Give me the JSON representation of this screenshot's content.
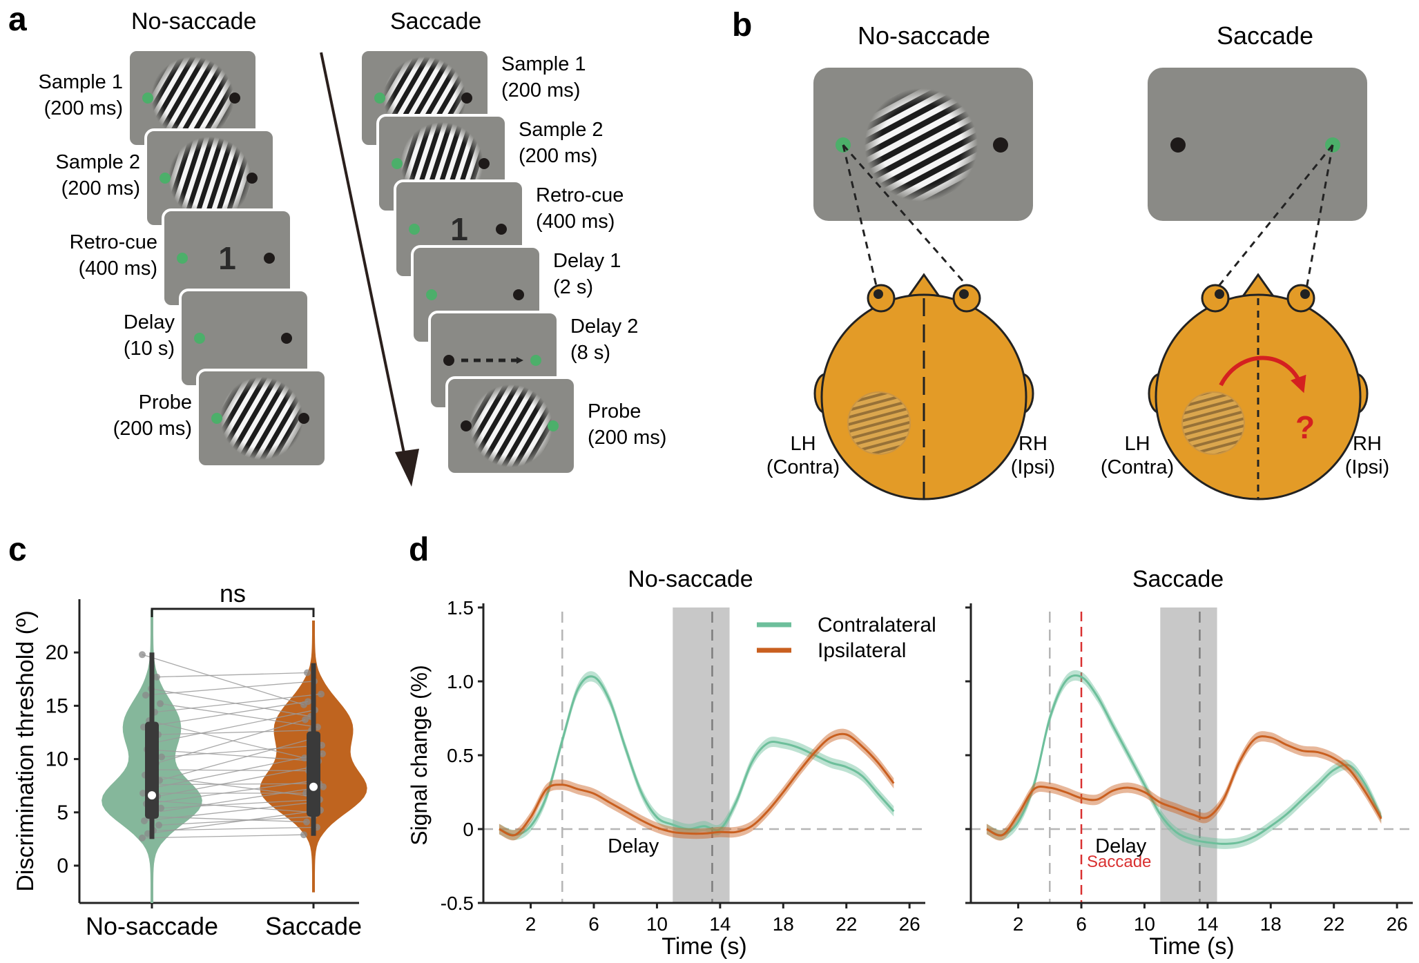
{
  "panels": {
    "a": {
      "letter": "a",
      "no_saccade": {
        "title": "No-saccade",
        "events": [
          {
            "name": "Sample 1",
            "dur": "(200 ms)",
            "content": "grating-diag"
          },
          {
            "name": "Sample 2",
            "dur": "(200 ms)",
            "content": "grating-steep"
          },
          {
            "name": "Retro-cue",
            "dur": "(400 ms)",
            "content": "cue",
            "cue": "1"
          },
          {
            "name": "Delay",
            "dur": "(10 s)",
            "content": "empty"
          },
          {
            "name": "Probe",
            "dur": "(200 ms)",
            "content": "grating-diag"
          }
        ]
      },
      "saccade": {
        "title": "Saccade",
        "events": [
          {
            "name": "Sample 1",
            "dur": "(200 ms)",
            "content": "grating-diag"
          },
          {
            "name": "Sample 2",
            "dur": "(200 ms)",
            "content": "grating-steep"
          },
          {
            "name": "Retro-cue",
            "dur": "(400 ms)",
            "content": "cue",
            "cue": "1"
          },
          {
            "name": "Delay 1",
            "dur": "(2 s)",
            "content": "empty"
          },
          {
            "name": "Delay 2",
            "dur": "(8 s)",
            "content": "saccade-arrow"
          },
          {
            "name": "Probe",
            "dur": "(200 ms)",
            "content": "grating-diag"
          }
        ]
      }
    },
    "b": {
      "letter": "b",
      "no_saccade": {
        "title": "No-saccade",
        "left_label": "LH",
        "left_sub": "(Contra)",
        "right_label": "RH",
        "right_sub": "(Ipsi)"
      },
      "saccade": {
        "title": "Saccade",
        "left_label": "LH",
        "left_sub": "(Contra)",
        "right_label": "RH",
        "right_sub": "(Ipsi)",
        "question": "?"
      }
    },
    "c": {
      "letter": "c"
    },
    "d": {
      "letter": "d"
    }
  },
  "colors": {
    "screen": "#8a8a86",
    "fixation_green": "#4caf6a",
    "head": "#e39b27",
    "contralateral": "#6dbf9b",
    "ipsilateral": "#c95f1f",
    "saccade_red": "#d93030",
    "violin_green": "#85b79b",
    "violin_orange": "#bf641f",
    "shade": "#c8c8c8"
  },
  "chart_data": [
    {
      "type": "violin",
      "panel": "c",
      "categories": [
        "No-saccade",
        "Saccade"
      ],
      "ylabel": "Discrimination threshold (º)",
      "yticks": [
        0,
        5,
        10,
        15,
        20
      ],
      "ylim": [
        -3.5,
        25
      ],
      "significance": "ns",
      "medians": [
        6.6,
        7.4
      ],
      "q1": [
        4.4,
        4.6
      ],
      "q3": [
        13.5,
        12.6
      ],
      "whisker_low": [
        2.5,
        2.8
      ],
      "whisker_high": [
        20,
        19
      ],
      "paired_values": [
        [
          2.6,
          2.9
        ],
        [
          3.0,
          5.2
        ],
        [
          3.3,
          3.6
        ],
        [
          3.8,
          4.6
        ],
        [
          4.2,
          5.9
        ],
        [
          4.6,
          4.1
        ],
        [
          5.0,
          7.4
        ],
        [
          5.4,
          6.2
        ],
        [
          5.8,
          8.0
        ],
        [
          6.1,
          5.0
        ],
        [
          6.5,
          9.2
        ],
        [
          6.8,
          6.8
        ],
        [
          7.2,
          10.5
        ],
        [
          7.6,
          7.7
        ],
        [
          8.0,
          12.0
        ],
        [
          8.5,
          6.5
        ],
        [
          9.0,
          8.9
        ],
        [
          9.6,
          13.7
        ],
        [
          10.2,
          11.3
        ],
        [
          10.9,
          9.8
        ],
        [
          11.5,
          14.6
        ],
        [
          12.3,
          12.7
        ],
        [
          13.0,
          15.4
        ],
        [
          13.6,
          10.1
        ],
        [
          14.4,
          16.1
        ],
        [
          15.2,
          13.0
        ],
        [
          16.0,
          17.3
        ],
        [
          16.6,
          14.0
        ],
        [
          17.7,
          18.1
        ],
        [
          19.8,
          15.1
        ]
      ]
    },
    {
      "type": "line",
      "panel": "d",
      "title": "No-saccade",
      "xlabel": "Time (s)",
      "ylabel": "Signal change (%)",
      "xticks": [
        2,
        6,
        10,
        14,
        18,
        22,
        26
      ],
      "yticks": [
        "-0.5",
        "0",
        "0.5",
        "1.0",
        "1.5"
      ],
      "ytick_values": [
        -0.5,
        0,
        0.5,
        1.0,
        1.5
      ],
      "xlim": [
        -1,
        27
      ],
      "ylim": [
        -0.5,
        1.5
      ],
      "shaded_window": [
        11,
        14.6
      ],
      "event_lines": [
        4,
        13.5
      ],
      "annotation": "Delay",
      "legend": [
        "Contralateral",
        "Ipsilateral"
      ],
      "series": [
        {
          "name": "Contralateral",
          "x": [
            0,
            1,
            2,
            3,
            4,
            5,
            6,
            7,
            8,
            9,
            10,
            11,
            12,
            13,
            14,
            15,
            16,
            17,
            18,
            19,
            20,
            21,
            22,
            23,
            24,
            25
          ],
          "values": [
            0.0,
            -0.04,
            0.02,
            0.22,
            0.6,
            0.95,
            1.03,
            0.87,
            0.55,
            0.25,
            0.08,
            0.03,
            0.0,
            0.02,
            0.0,
            0.18,
            0.45,
            0.58,
            0.58,
            0.55,
            0.5,
            0.45,
            0.42,
            0.36,
            0.24,
            0.12
          ]
        },
        {
          "name": "Ipsilateral",
          "x": [
            0,
            1,
            2,
            3,
            4,
            5,
            6,
            7,
            8,
            9,
            10,
            11,
            12,
            13,
            14,
            15,
            16,
            17,
            18,
            19,
            20,
            21,
            22,
            23,
            24,
            25
          ],
          "values": [
            0.0,
            -0.04,
            0.08,
            0.27,
            0.3,
            0.27,
            0.24,
            0.18,
            0.12,
            0.06,
            0.01,
            -0.02,
            -0.03,
            -0.03,
            -0.02,
            -0.02,
            0.02,
            0.12,
            0.25,
            0.39,
            0.52,
            0.62,
            0.64,
            0.56,
            0.45,
            0.31
          ]
        }
      ]
    },
    {
      "type": "line",
      "panel": "d",
      "title": "Saccade",
      "xlabel": "Time (s)",
      "xticks": [
        2,
        6,
        10,
        14,
        18,
        22,
        26
      ],
      "xlim": [
        -1,
        27
      ],
      "ylim": [
        -0.5,
        1.5
      ],
      "shaded_window": [
        11,
        14.6
      ],
      "event_lines": [
        4,
        13.5
      ],
      "saccade_line": 6,
      "annotation": "Delay",
      "saccade_label": "Saccade",
      "series": [
        {
          "name": "Contralateral",
          "x": [
            0,
            1,
            2,
            3,
            4,
            5,
            6,
            7,
            8,
            9,
            10,
            11,
            12,
            13,
            14,
            15,
            16,
            17,
            18,
            19,
            20,
            21,
            22,
            23,
            24,
            25
          ],
          "values": [
            0.0,
            -0.04,
            0.05,
            0.3,
            0.75,
            1.0,
            1.03,
            0.9,
            0.7,
            0.5,
            0.3,
            0.1,
            -0.02,
            -0.07,
            -0.09,
            -0.1,
            -0.09,
            -0.05,
            0.02,
            0.1,
            0.2,
            0.3,
            0.4,
            0.43,
            0.3,
            0.08
          ]
        },
        {
          "name": "Ipsilateral",
          "x": [
            0,
            1,
            2,
            3,
            4,
            5,
            6,
            7,
            8,
            9,
            10,
            11,
            12,
            13,
            14,
            15,
            16,
            17,
            18,
            19,
            20,
            21,
            22,
            23,
            24,
            25
          ],
          "values": [
            0.0,
            -0.04,
            0.1,
            0.27,
            0.28,
            0.25,
            0.21,
            0.2,
            0.26,
            0.28,
            0.25,
            0.18,
            0.14,
            0.1,
            0.08,
            0.2,
            0.45,
            0.61,
            0.62,
            0.57,
            0.53,
            0.52,
            0.48,
            0.4,
            0.25,
            0.07
          ]
        }
      ]
    }
  ]
}
